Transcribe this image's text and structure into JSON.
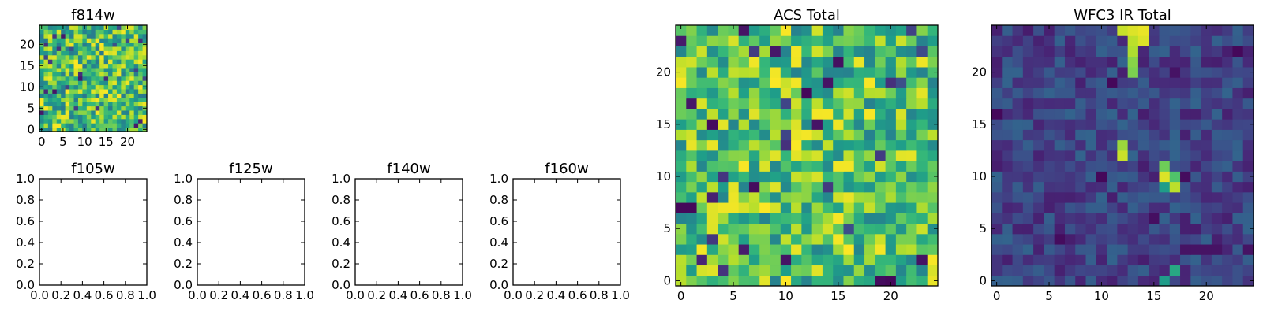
{
  "chart_data": [
    {
      "type": "heatmap",
      "id": "f814w",
      "title": "f814w",
      "rows": 25,
      "cols": 25,
      "origin": "lower",
      "colormap": "viridis",
      "xlim": [
        -0.5,
        24.5
      ],
      "ylim": [
        -0.5,
        24.5
      ],
      "xticks": [
        0,
        5,
        10,
        15,
        20
      ],
      "yticks": [
        0,
        5,
        10,
        15,
        20
      ],
      "value_range": [
        0,
        1
      ],
      "noise": {
        "mean": 0.7,
        "spread": 0.3,
        "seed": 814
      },
      "hotspots": []
    },
    {
      "type": "heatmap",
      "id": "f105w",
      "title": "f105w",
      "empty": true,
      "xlim": [
        0,
        1
      ],
      "ylim": [
        0,
        1
      ],
      "xticks": [
        "0.0",
        "0.2",
        "0.4",
        "0.6",
        "0.8",
        "1.0"
      ],
      "yticks": [
        "0.0",
        "0.2",
        "0.4",
        "0.6",
        "0.8",
        "1.0"
      ]
    },
    {
      "type": "heatmap",
      "id": "f125w",
      "title": "f125w",
      "empty": true,
      "xlim": [
        0,
        1
      ],
      "ylim": [
        0,
        1
      ],
      "xticks": [
        "0.0",
        "0.2",
        "0.4",
        "0.6",
        "0.8",
        "1.0"
      ],
      "yticks": [
        "0.0",
        "0.2",
        "0.4",
        "0.6",
        "0.8",
        "1.0"
      ]
    },
    {
      "type": "heatmap",
      "id": "f140w",
      "title": "f140w",
      "empty": true,
      "xlim": [
        0,
        1
      ],
      "ylim": [
        0,
        1
      ],
      "xticks": [
        "0.0",
        "0.2",
        "0.4",
        "0.6",
        "0.8",
        "1.0"
      ],
      "yticks": [
        "0.0",
        "0.2",
        "0.4",
        "0.6",
        "0.8",
        "1.0"
      ]
    },
    {
      "type": "heatmap",
      "id": "f160w",
      "title": "f160w",
      "empty": true,
      "xlim": [
        0,
        1
      ],
      "ylim": [
        0,
        1
      ],
      "xticks": [
        "0.0",
        "0.2",
        "0.4",
        "0.6",
        "0.8",
        "1.0"
      ],
      "yticks": [
        "0.0",
        "0.2",
        "0.4",
        "0.6",
        "0.8",
        "1.0"
      ]
    },
    {
      "type": "heatmap",
      "id": "acs-total",
      "title": "ACS Total",
      "rows": 25,
      "cols": 25,
      "origin": "lower",
      "colormap": "viridis",
      "xlim": [
        -0.5,
        24.5
      ],
      "ylim": [
        -0.5,
        24.5
      ],
      "xticks": [
        0,
        5,
        10,
        15,
        20
      ],
      "yticks": [
        0,
        5,
        10,
        15,
        20
      ],
      "value_range": [
        0,
        1
      ],
      "noise": {
        "mean": 0.72,
        "spread": 0.28,
        "seed": 2024
      },
      "hotspots": [
        {
          "col": 0,
          "row": 7,
          "value": 0.02
        },
        {
          "col": 1,
          "row": 7,
          "value": 0.02
        },
        {
          "col": 7,
          "row": 9,
          "value": 0.03
        },
        {
          "col": 3,
          "row": 15,
          "value": 0.03
        },
        {
          "col": 12,
          "row": 18,
          "value": 0.02
        },
        {
          "col": 14,
          "row": 19,
          "value": 0.05
        },
        {
          "col": 15,
          "row": 21,
          "value": 0.04
        },
        {
          "col": 19,
          "row": 0,
          "value": 0.03
        },
        {
          "col": 20,
          "row": 0,
          "value": 0.02
        },
        {
          "col": 23,
          "row": 2,
          "value": 0.05
        }
      ]
    },
    {
      "type": "heatmap",
      "id": "wfc3-ir-total",
      "title": "WFC3 IR Total",
      "rows": 25,
      "cols": 25,
      "origin": "lower",
      "colormap": "viridis",
      "xlim": [
        -0.5,
        24.5
      ],
      "ylim": [
        -0.5,
        24.5
      ],
      "xticks": [
        0,
        5,
        10,
        15,
        20
      ],
      "yticks": [
        0,
        5,
        10,
        15,
        20
      ],
      "value_range": [
        0,
        1
      ],
      "noise": {
        "mean": 0.2,
        "spread": 0.12,
        "seed": 160
      },
      "hotspots": [
        {
          "col": 12,
          "row": 24,
          "value": 0.92
        },
        {
          "col": 13,
          "row": 24,
          "value": 0.95
        },
        {
          "col": 14,
          "row": 24,
          "value": 0.97
        },
        {
          "col": 14,
          "row": 23,
          "value": 0.95
        },
        {
          "col": 13,
          "row": 23,
          "value": 0.9
        },
        {
          "col": 13,
          "row": 22,
          "value": 0.88
        },
        {
          "col": 13,
          "row": 21,
          "value": 0.82
        },
        {
          "col": 13,
          "row": 20,
          "value": 0.8
        },
        {
          "col": 12,
          "row": 13,
          "value": 0.85
        },
        {
          "col": 12,
          "row": 12,
          "value": 0.92
        },
        {
          "col": 16,
          "row": 11,
          "value": 0.78
        },
        {
          "col": 16,
          "row": 10,
          "value": 0.95
        },
        {
          "col": 17,
          "row": 10,
          "value": 0.72
        },
        {
          "col": 17,
          "row": 9,
          "value": 0.9
        },
        {
          "col": 16,
          "row": 9,
          "value": 0.55
        },
        {
          "col": 17,
          "row": 1,
          "value": 0.6
        },
        {
          "col": 16,
          "row": 0,
          "value": 0.55
        },
        {
          "col": 10,
          "row": 10,
          "value": 0.02
        },
        {
          "col": 18,
          "row": 10,
          "value": 0.03
        },
        {
          "col": 0,
          "row": 16,
          "value": 0.02
        },
        {
          "col": 11,
          "row": 19,
          "value": 0.02
        },
        {
          "col": 23,
          "row": 22,
          "value": 0.02
        },
        {
          "col": 6,
          "row": 4,
          "value": 0.03
        },
        {
          "col": 24,
          "row": 3,
          "value": 0.05
        },
        {
          "col": 18,
          "row": 3,
          "value": 0.05
        },
        {
          "col": 19,
          "row": 3,
          "value": 0.05
        },
        {
          "col": 20,
          "row": 3,
          "value": 0.05
        },
        {
          "col": 21,
          "row": 3,
          "value": 0.05
        },
        {
          "col": 15,
          "row": 6,
          "value": 0.04
        }
      ]
    }
  ]
}
